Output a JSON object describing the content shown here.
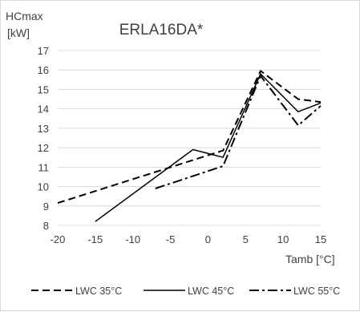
{
  "chart_data": {
    "type": "line",
    "title": "ERLA16DA*",
    "ylabel_line1": "HCmax",
    "ylabel_line2": "[kW]",
    "xlabel": "Tamb [°C]",
    "xlim": [
      -20,
      15
    ],
    "ylim": [
      8,
      17
    ],
    "x_ticks": [
      -20,
      -15,
      -10,
      -5,
      0,
      5,
      10,
      15
    ],
    "y_ticks": [
      8,
      9,
      10,
      11,
      12,
      13,
      14,
      15,
      16,
      17
    ],
    "grid": "horizontal",
    "legend_position": "bottom",
    "series": [
      {
        "name": "LWC 35°C",
        "dash": "dashed",
        "color": "#000000",
        "x": [
          -20,
          2,
          7,
          12,
          15
        ],
        "y": [
          9.15,
          11.85,
          15.95,
          14.5,
          14.35
        ]
      },
      {
        "name": "LWC 45°C",
        "dash": "solid",
        "color": "#000000",
        "x": [
          -15,
          -2,
          2,
          7,
          12,
          15
        ],
        "y": [
          8.2,
          11.9,
          11.5,
          15.8,
          13.85,
          14.3
        ]
      },
      {
        "name": "LWC 55°C",
        "dash": "dashdot",
        "color": "#000000",
        "x": [
          -7,
          2,
          7,
          12,
          15
        ],
        "y": [
          9.9,
          11.05,
          15.7,
          13.15,
          14.15
        ]
      }
    ]
  }
}
